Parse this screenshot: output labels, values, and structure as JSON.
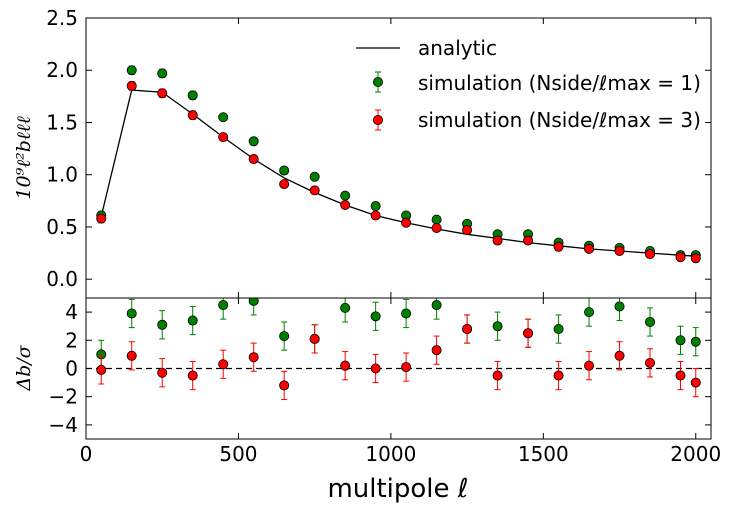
{
  "chart_data": [
    {
      "panel": "top",
      "type": "scatter",
      "title": "",
      "xlabel": "",
      "ylabel": "10⁹ℓ²bℓℓℓ",
      "xlim": [
        0,
        2050
      ],
      "ylim": [
        -0.18,
        2.5
      ],
      "yticks": [
        0.0,
        0.5,
        1.0,
        1.5,
        2.0,
        2.5
      ],
      "ytick_labels": [
        "0.0",
        "0.5",
        "1.0",
        "1.5",
        "2.0",
        "2.5"
      ],
      "grid": false,
      "legend_position": "top-right",
      "legend": [
        "analytic",
        "simulation (Nside/ℓmax = 1)",
        "simulation (Nside/ℓmax = 3)"
      ],
      "series": [
        {
          "name": "analytic",
          "kind": "line",
          "color": "#000000",
          "x": [
            50,
            150,
            250,
            350,
            450,
            550,
            650,
            750,
            850,
            950,
            1050,
            1150,
            1250,
            1350,
            1450,
            1550,
            1650,
            1750,
            1850,
            1950,
            2000
          ],
          "values": [
            0.6,
            1.81,
            1.79,
            1.58,
            1.36,
            1.15,
            0.97,
            0.83,
            0.71,
            0.61,
            0.54,
            0.48,
            0.43,
            0.39,
            0.35,
            0.32,
            0.29,
            0.27,
            0.25,
            0.23,
            0.22
          ]
        },
        {
          "name": "simulation (Nside/ℓmax = 1)",
          "kind": "errorbar",
          "color": "#008000",
          "x": [
            50,
            150,
            250,
            350,
            450,
            550,
            650,
            750,
            850,
            950,
            1050,
            1150,
            1250,
            1350,
            1450,
            1550,
            1650,
            1750,
            1850,
            1950,
            2000
          ],
          "values": [
            0.61,
            2.0,
            1.97,
            1.76,
            1.55,
            1.32,
            1.04,
            0.98,
            0.8,
            0.7,
            0.61,
            0.57,
            0.53,
            0.43,
            0.43,
            0.35,
            0.32,
            0.3,
            0.27,
            0.23,
            0.23
          ],
          "errors": [
            0.04,
            0.04,
            0.04,
            0.04,
            0.03,
            0.03,
            0.03,
            0.03,
            0.02,
            0.02,
            0.02,
            0.02,
            0.02,
            0.02,
            0.02,
            0.02,
            0.02,
            0.02,
            0.02,
            0.02,
            0.02
          ]
        },
        {
          "name": "simulation (Nside/ℓmax = 3)",
          "kind": "errorbar",
          "color": "#ff0000",
          "x": [
            50,
            150,
            250,
            350,
            450,
            550,
            650,
            750,
            850,
            950,
            1050,
            1150,
            1250,
            1350,
            1450,
            1550,
            1650,
            1750,
            1850,
            1950,
            2000
          ],
          "values": [
            0.58,
            1.85,
            1.78,
            1.57,
            1.36,
            1.15,
            0.91,
            0.85,
            0.71,
            0.61,
            0.54,
            0.49,
            0.47,
            0.37,
            0.37,
            0.31,
            0.29,
            0.27,
            0.24,
            0.21,
            0.2
          ],
          "errors": [
            0.04,
            0.04,
            0.04,
            0.04,
            0.03,
            0.03,
            0.03,
            0.03,
            0.02,
            0.02,
            0.02,
            0.02,
            0.02,
            0.02,
            0.02,
            0.02,
            0.02,
            0.02,
            0.02,
            0.02,
            0.02
          ]
        }
      ]
    },
    {
      "panel": "bottom",
      "type": "scatter",
      "title": "",
      "xlabel": "multipole ℓ",
      "ylabel": "Δb/σ",
      "xlim": [
        0,
        2050
      ],
      "ylim": [
        -5,
        5
      ],
      "xticks": [
        0,
        500,
        1000,
        1500,
        2000
      ],
      "xtick_labels": [
        "0",
        "500",
        "1000",
        "1500",
        "2000"
      ],
      "yticks": [
        -4,
        -2,
        0,
        2,
        4
      ],
      "ytick_labels": [
        "−4",
        "−2",
        "0",
        "2",
        "4"
      ],
      "reference_line": {
        "y": 0,
        "style": "dashed",
        "color": "#000000"
      },
      "grid": false,
      "series": [
        {
          "name": "simulation (Nside/ℓmax = 1)",
          "kind": "errorbar",
          "color": "#008000",
          "x": [
            50,
            150,
            250,
            350,
            450,
            550,
            650,
            750,
            850,
            950,
            1050,
            1150,
            1250,
            1350,
            1450,
            1550,
            1650,
            1750,
            1850,
            1950,
            2000
          ],
          "values": [
            1.0,
            3.9,
            3.1,
            3.4,
            4.5,
            4.8,
            2.3,
            2.1,
            4.3,
            3.7,
            3.9,
            4.5,
            2.8,
            3.0,
            2.5,
            2.8,
            4.0,
            4.4,
            3.3,
            2.0,
            1.9
          ],
          "errors": [
            1.0,
            1.0,
            1.0,
            1.0,
            1.0,
            1.0,
            1.0,
            1.0,
            1.0,
            1.0,
            1.0,
            1.0,
            1.0,
            1.0,
            1.0,
            1.0,
            1.0,
            1.0,
            1.0,
            1.0,
            1.0
          ]
        },
        {
          "name": "simulation (Nside/ℓmax = 3)",
          "kind": "errorbar",
          "color": "#ff0000",
          "x": [
            50,
            150,
            250,
            350,
            450,
            550,
            650,
            750,
            850,
            950,
            1050,
            1150,
            1250,
            1350,
            1450,
            1550,
            1650,
            1750,
            1850,
            1950,
            2000
          ],
          "values": [
            -0.1,
            0.9,
            -0.3,
            -0.5,
            0.3,
            0.8,
            -1.2,
            2.1,
            0.2,
            0.0,
            0.1,
            1.3,
            2.8,
            -0.5,
            2.5,
            -0.5,
            0.2,
            0.9,
            0.4,
            -0.5,
            -1.0
          ],
          "errors": [
            1.0,
            1.0,
            1.0,
            1.0,
            1.0,
            1.0,
            1.0,
            1.0,
            1.0,
            1.0,
            1.0,
            1.0,
            1.0,
            1.0,
            1.0,
            1.0,
            1.0,
            1.0,
            1.0,
            1.0,
            1.0
          ]
        }
      ]
    }
  ]
}
